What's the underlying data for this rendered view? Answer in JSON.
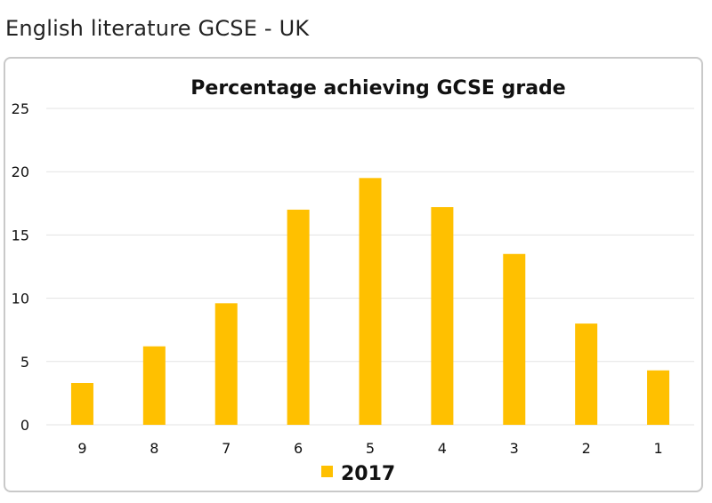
{
  "page": {
    "heading": "English literature GCSE - UK"
  },
  "chart_data": {
    "type": "bar",
    "title": "Percentage achieving GCSE grade",
    "categories": [
      "9",
      "8",
      "7",
      "6",
      "5",
      "4",
      "3",
      "2",
      "1"
    ],
    "series": [
      {
        "name": "2017",
        "values": [
          3.3,
          6.2,
          9.6,
          17.0,
          19.5,
          17.2,
          13.5,
          8.0,
          4.3
        ],
        "color": "#FFC000"
      }
    ],
    "ylim": [
      0,
      25
    ],
    "yticks": [
      0,
      5,
      10,
      15,
      20,
      25
    ],
    "xlabel": "",
    "ylabel": "",
    "grid": true,
    "legend_position": "bottom"
  }
}
